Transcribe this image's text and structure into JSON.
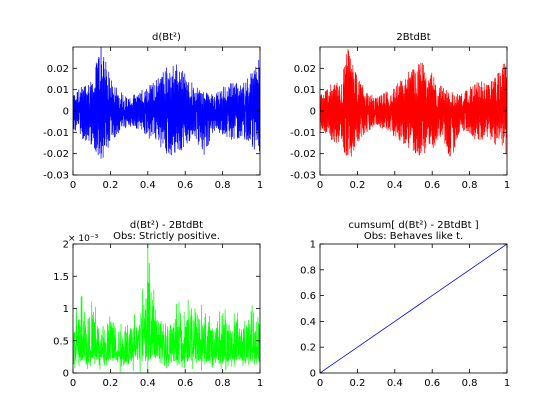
{
  "chart_data": [
    {
      "type": "line",
      "title": "d(Bt²)",
      "subtitle": "",
      "xlabel": "",
      "ylabel": "",
      "xlim": [
        0,
        1
      ],
      "ylim": [
        -0.03,
        0.03
      ],
      "x_ticks": [
        0,
        0.2,
        0.4,
        0.6,
        0.8,
        1
      ],
      "x_tick_labels": [
        "0",
        "0.2",
        "0.4",
        "0.6",
        "0.8",
        "1"
      ],
      "y_ticks": [
        -0.03,
        -0.02,
        -0.01,
        0,
        0.01,
        0.02
      ],
      "y_tick_labels": [
        "-0.03",
        "-0.02",
        "-0.01",
        "0",
        "0.01",
        "0.02"
      ],
      "exponent_label": "",
      "grid": false,
      "color": "#0000ff",
      "series": [
        {
          "x": [
            0,
            0.05,
            0.1,
            0.15,
            0.2,
            0.25,
            0.3,
            0.35,
            0.4,
            0.45,
            0.5,
            0.55,
            0.6,
            0.65,
            0.7,
            0.75,
            0.8,
            0.85,
            0.9,
            0.95,
            1
          ],
          "y_max": [
            0.008,
            0.012,
            0.015,
            0.031,
            0.016,
            0.01,
            0.006,
            0.009,
            0.012,
            0.016,
            0.021,
            0.023,
            0.018,
            0.012,
            0.009,
            0.008,
            0.011,
            0.015,
            0.012,
            0.018,
            0.026
          ],
          "y_min": [
            -0.009,
            -0.013,
            -0.016,
            -0.024,
            -0.015,
            -0.01,
            -0.007,
            -0.009,
            -0.013,
            -0.016,
            -0.02,
            -0.022,
            -0.018,
            -0.012,
            -0.023,
            -0.009,
            -0.011,
            -0.015,
            -0.012,
            -0.017,
            -0.02
          ]
        }
      ]
    },
    {
      "type": "line",
      "title": "2BtdBt",
      "subtitle": "",
      "xlabel": "",
      "ylabel": "",
      "xlim": [
        0,
        1
      ],
      "ylim": [
        -0.03,
        0.03
      ],
      "x_ticks": [
        0,
        0.2,
        0.4,
        0.6,
        0.8,
        1
      ],
      "x_tick_labels": [
        "0",
        "0.2",
        "0.4",
        "0.6",
        "0.8",
        "1"
      ],
      "y_ticks": [
        -0.03,
        -0.02,
        -0.01,
        0,
        0.01,
        0.02
      ],
      "y_tick_labels": [
        "-0.03",
        "-0.02",
        "-0.01",
        "0",
        "0.01",
        "0.02"
      ],
      "exponent_label": "",
      "grid": false,
      "color": "#ff0000",
      "series": [
        {
          "x": [
            0,
            0.05,
            0.1,
            0.15,
            0.2,
            0.25,
            0.3,
            0.35,
            0.4,
            0.45,
            0.5,
            0.55,
            0.6,
            0.65,
            0.7,
            0.75,
            0.8,
            0.85,
            0.9,
            0.95,
            1
          ],
          "y_max": [
            0.008,
            0.012,
            0.015,
            0.029,
            0.016,
            0.01,
            0.006,
            0.009,
            0.012,
            0.016,
            0.021,
            0.023,
            0.018,
            0.012,
            0.009,
            0.008,
            0.011,
            0.015,
            0.012,
            0.018,
            0.025
          ],
          "y_min": [
            -0.009,
            -0.013,
            -0.016,
            -0.025,
            -0.015,
            -0.01,
            -0.007,
            -0.009,
            -0.013,
            -0.016,
            -0.02,
            -0.022,
            -0.018,
            -0.012,
            -0.024,
            -0.009,
            -0.011,
            -0.015,
            -0.012,
            -0.017,
            -0.02
          ]
        }
      ]
    },
    {
      "type": "line",
      "title": "d(Bt²) - 2BtdBt",
      "subtitle": "Obs: Strictly positive.",
      "xlabel": "",
      "ylabel": "",
      "xlim": [
        0,
        1
      ],
      "ylim": [
        0,
        0.002
      ],
      "x_ticks": [
        0,
        0.2,
        0.4,
        0.6,
        0.8,
        1
      ],
      "x_tick_labels": [
        "0",
        "0.2",
        "0.4",
        "0.6",
        "0.8",
        "1"
      ],
      "y_ticks": [
        0,
        0.0005,
        0.001,
        0.0015,
        0.002
      ],
      "y_tick_labels": [
        "0",
        "0.5",
        "1",
        "1.5",
        "2"
      ],
      "exponent_label": "× 10⁻³",
      "grid": false,
      "color": "#00ff00",
      "series": [
        {
          "x": [
            0,
            0.05,
            0.1,
            0.15,
            0.2,
            0.25,
            0.3,
            0.35,
            0.4,
            0.45,
            0.5,
            0.55,
            0.6,
            0.65,
            0.7,
            0.75,
            0.8,
            0.85,
            0.9,
            0.95,
            1
          ],
          "y_max": [
            0.0009,
            0.0013,
            0.0012,
            0.0009,
            0.0011,
            0.001,
            0.0009,
            0.001,
            0.00195,
            0.0011,
            0.001,
            0.0012,
            0.0011,
            0.0013,
            0.001,
            0.0009,
            0.0011,
            0.001,
            0.0009,
            0.0011,
            0.001
          ],
          "y_min": [
            0,
            0,
            0,
            0,
            0,
            0,
            0,
            0,
            0,
            0,
            0,
            0,
            0,
            0,
            0,
            0,
            0,
            0,
            0,
            0,
            0
          ],
          "dense_level": 0.0003
        }
      ]
    },
    {
      "type": "line",
      "title": "cumsum[ d(Bt²) - 2BtdBt ]",
      "subtitle": "Obs: Behaves like t.",
      "xlabel": "",
      "ylabel": "",
      "xlim": [
        0,
        1
      ],
      "ylim": [
        0,
        1
      ],
      "x_ticks": [
        0,
        0.2,
        0.4,
        0.6,
        0.8,
        1
      ],
      "x_tick_labels": [
        "0",
        "0.2",
        "0.4",
        "0.6",
        "0.8",
        "1"
      ],
      "y_ticks": [
        0,
        0.2,
        0.4,
        0.6,
        0.8,
        1
      ],
      "y_tick_labels": [
        "0",
        "0.2",
        "0.4",
        "0.6",
        "0.8",
        "1"
      ],
      "exponent_label": "",
      "grid": false,
      "color": "#0000ff",
      "series": [
        {
          "x": [
            0,
            0.1,
            0.2,
            0.3,
            0.4,
            0.5,
            0.6,
            0.7,
            0.8,
            0.9,
            1
          ],
          "y": [
            0,
            0.1,
            0.2,
            0.3,
            0.4,
            0.5,
            0.6,
            0.7,
            0.8,
            0.9,
            1
          ]
        }
      ]
    }
  ]
}
